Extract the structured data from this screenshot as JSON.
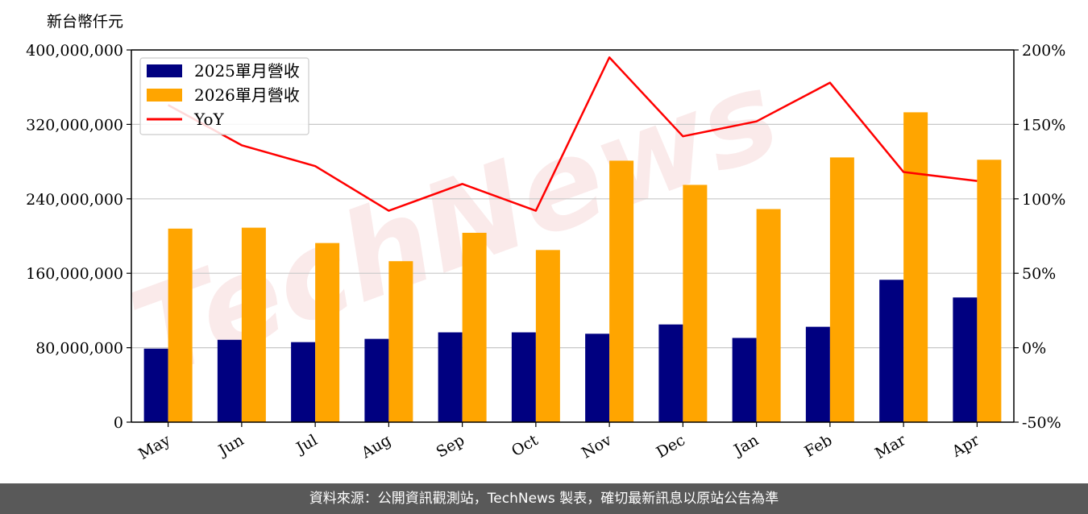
{
  "chart_data": {
    "type": "bar",
    "unit_label": "新台幣仟元",
    "categories": [
      "May",
      "Jun",
      "Jul",
      "Aug",
      "Sep",
      "Oct",
      "Nov",
      "Dec",
      "Jan",
      "Feb",
      "Mar",
      "Apr"
    ],
    "series": [
      {
        "name": "2025單月營收",
        "type": "bar",
        "axis": "left",
        "color": "#000080",
        "values": [
          79000000,
          88500000,
          86000000,
          89500000,
          96500000,
          96500000,
          95000000,
          105000000,
          90500000,
          102500000,
          153000000,
          134000000
        ]
      },
      {
        "name": "2026單月營收",
        "type": "bar",
        "axis": "left",
        "color": "#ffa500",
        "values": [
          208000000,
          209000000,
          192500000,
          173000000,
          203500000,
          185000000,
          281000000,
          255000000,
          229000000,
          284500000,
          333000000,
          282000000
        ]
      },
      {
        "name": "YoY",
        "type": "line",
        "axis": "right",
        "color": "#ff0000",
        "values": [
          163,
          136,
          122,
          92,
          110,
          92,
          195,
          142,
          152,
          178,
          118,
          112
        ]
      }
    ],
    "y_left": {
      "ylim": [
        0,
        400000000
      ],
      "ticks": [
        0,
        80000000,
        160000000,
        240000000,
        320000000,
        400000000
      ],
      "tick_labels": [
        "0",
        "80,000,000",
        "160,000,000",
        "240,000,000",
        "320,000,000",
        "400,000,000"
      ]
    },
    "y_right": {
      "ylim": [
        -50,
        200
      ],
      "ticks": [
        -50,
        0,
        50,
        100,
        150,
        200
      ],
      "tick_labels": [
        "-50%",
        "0%",
        "50%",
        "100%",
        "150%",
        "200%"
      ]
    },
    "grid": "horizontal",
    "legend_position": "top-left"
  },
  "watermark": "TechNews",
  "footer": {
    "text": "資料來源：公開資訊觀測站，TechNews 製表，確切最新訊息以原站公告為準"
  }
}
